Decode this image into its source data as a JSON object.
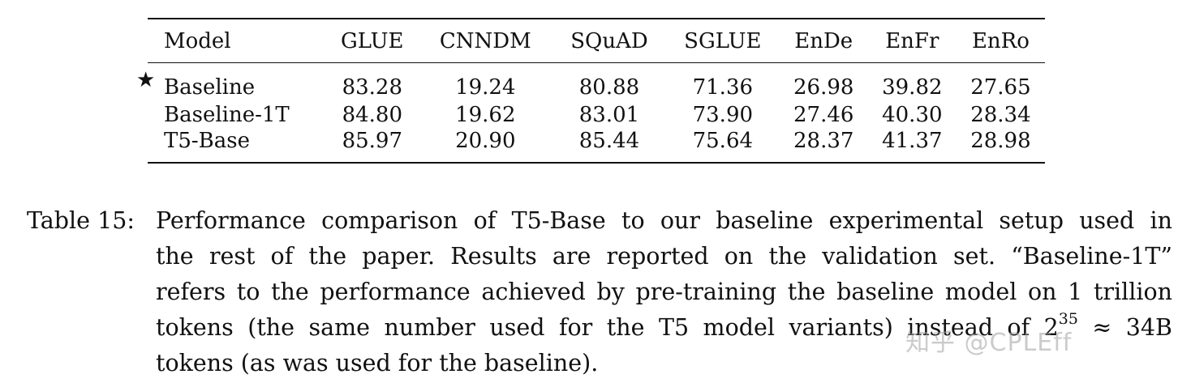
{
  "table": {
    "columns": [
      "Model",
      "GLUE",
      "CNNDM",
      "SQuAD",
      "SGLUE",
      "EnDe",
      "EnFr",
      "EnRo"
    ],
    "rows": [
      {
        "marker": "★",
        "model": "Baseline",
        "values": [
          "83.28",
          "19.24",
          "80.88",
          "71.36",
          "26.98",
          "39.82",
          "27.65"
        ]
      },
      {
        "marker": "",
        "model": "Baseline-1T",
        "values": [
          "84.80",
          "19.62",
          "83.01",
          "73.90",
          "27.46",
          "40.30",
          "28.34"
        ]
      },
      {
        "marker": "",
        "model": "T5-Base",
        "values": [
          "85.97",
          "20.90",
          "85.44",
          "75.64",
          "28.37",
          "41.37",
          "28.98"
        ],
        "bold": true
      }
    ]
  },
  "caption": {
    "label": "Table 15:",
    "line1": "Performance comparison of T5-Base to our baseline experimental setup used in",
    "line2": "the rest of the paper. Results are reported on the validation set. “Baseline-1T”",
    "line3": "refers to the performance achieved by pre-training the baseline model on 1 trillion",
    "line4_before": "tokens (the same number used for the T5 model variants) instead of 2",
    "line4_exponent": "35",
    "line4_after": " ≈ 34B",
    "line5": "tokens (as was used for the baseline)."
  },
  "watermark": "知乎 @CPLEff"
}
